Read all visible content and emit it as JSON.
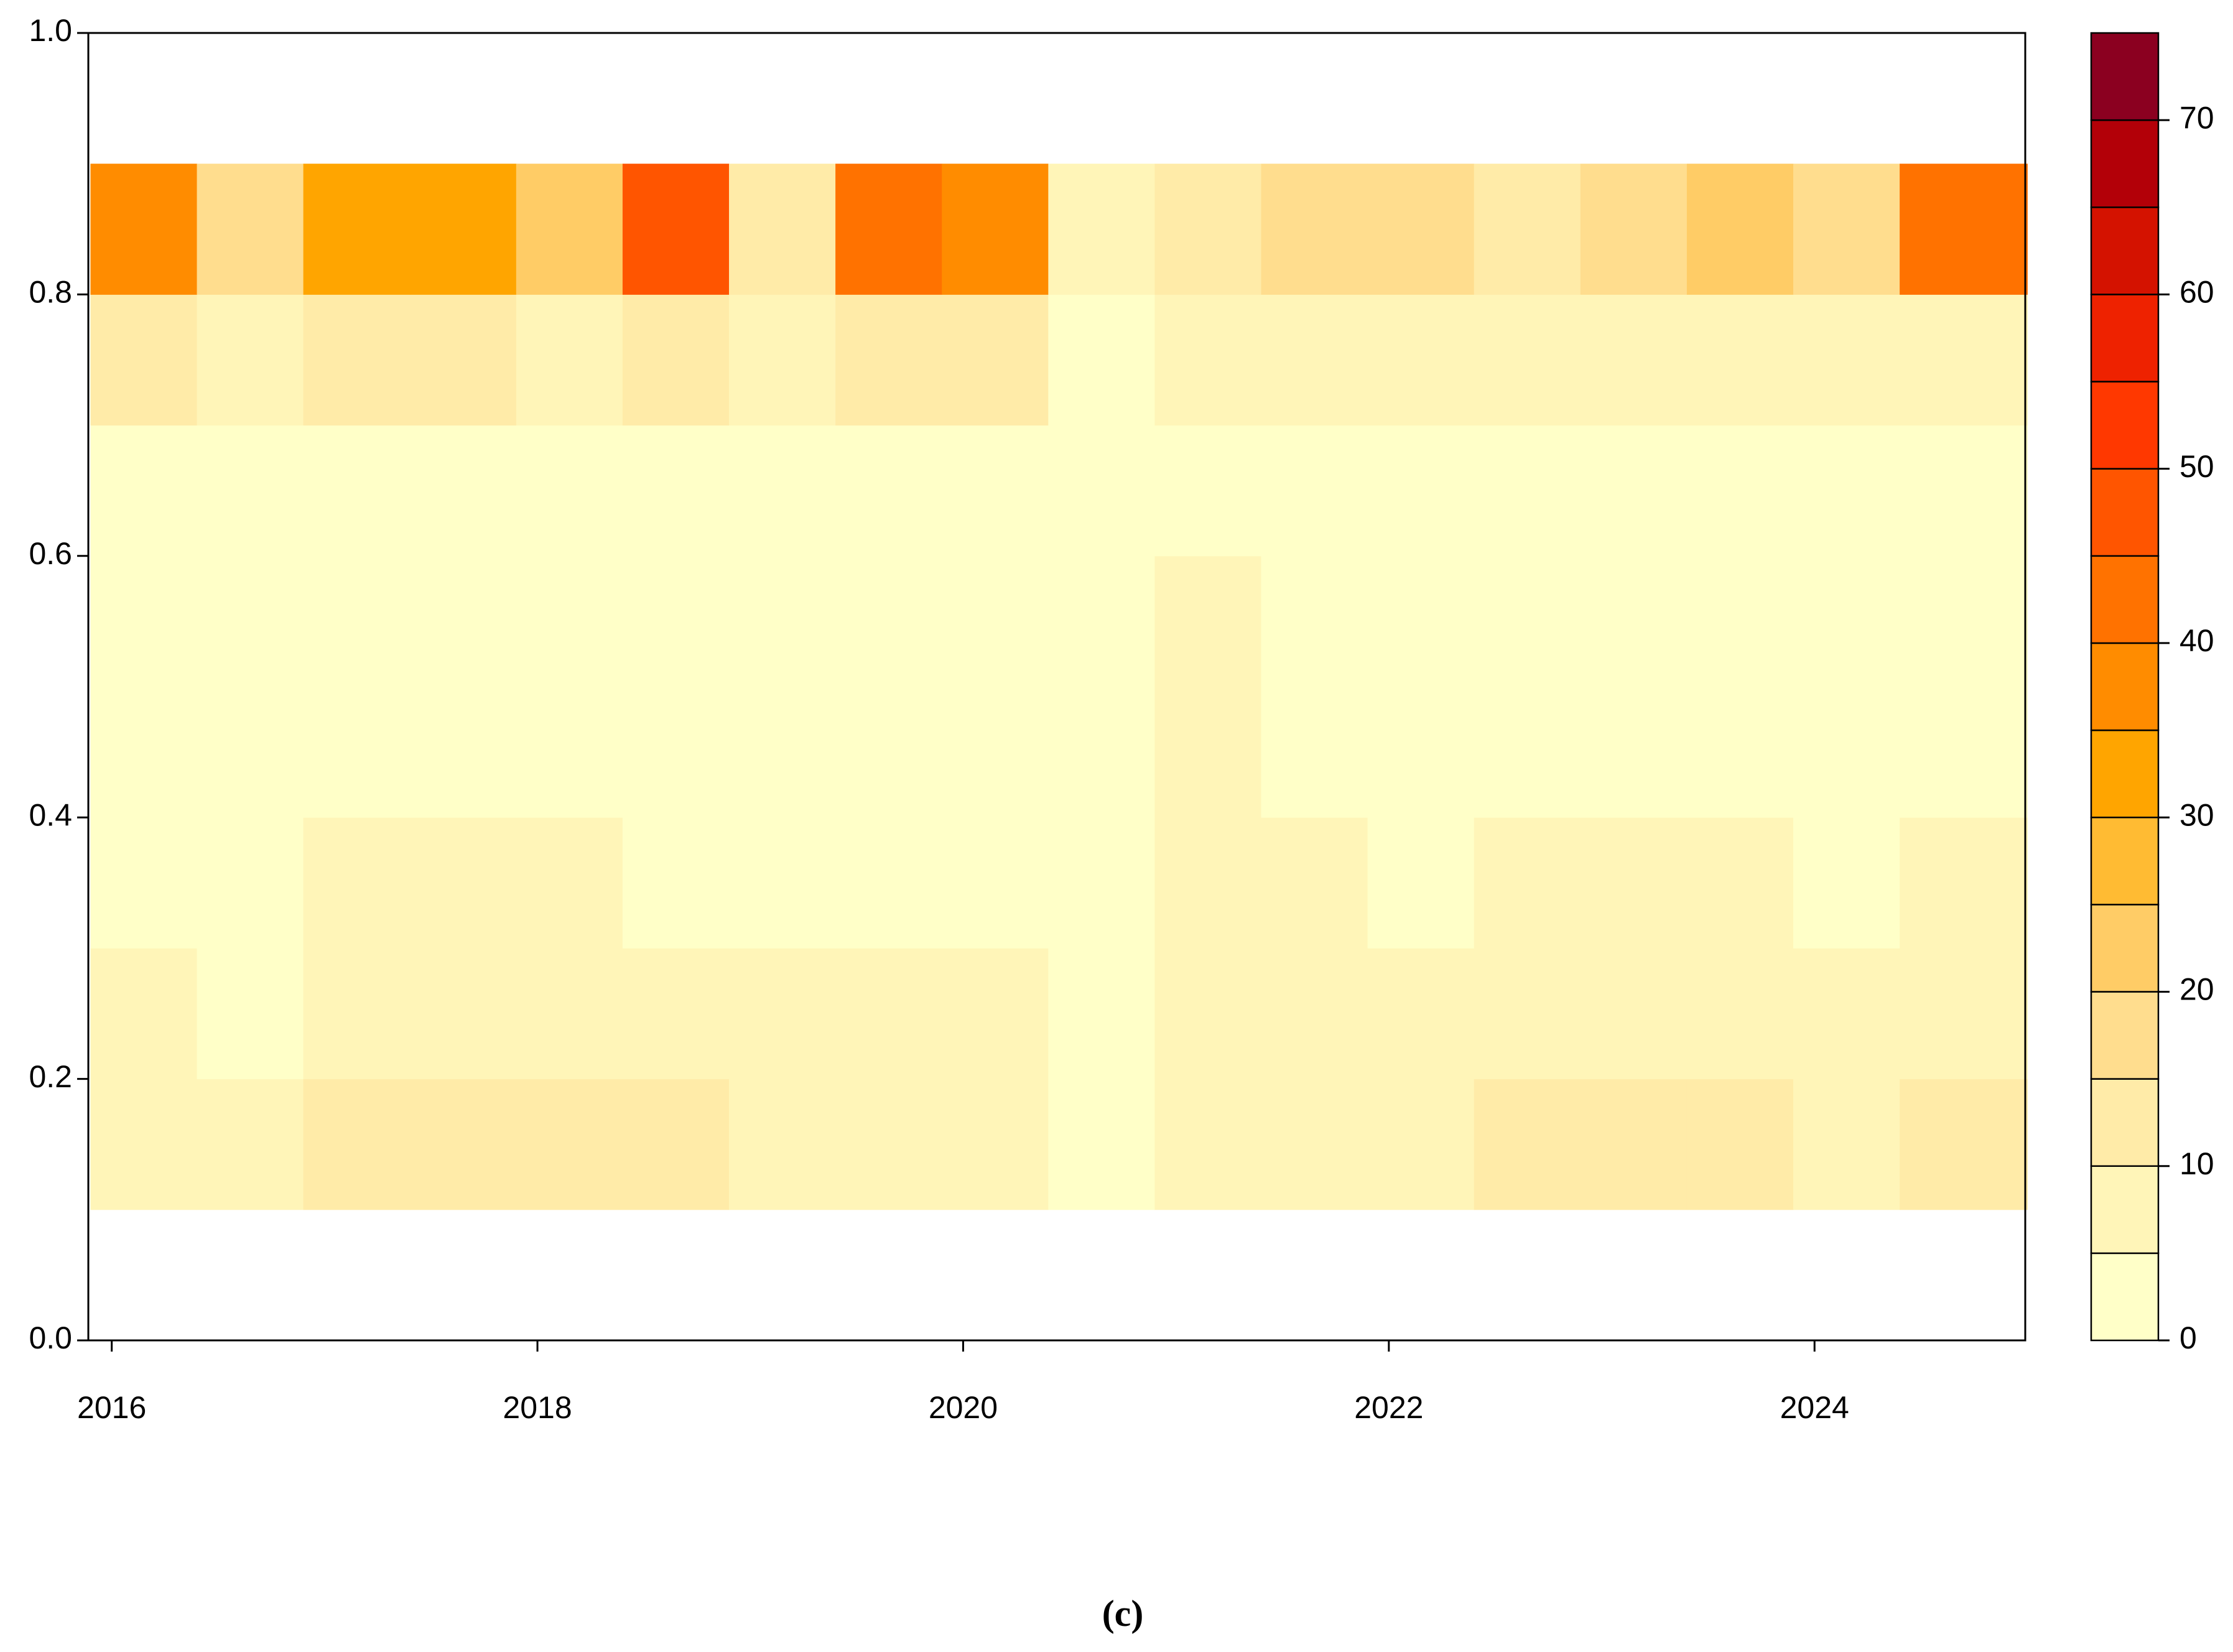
{
  "chart_data": {
    "type": "heatmap",
    "caption": "(c)",
    "x_bins": [
      2015.9,
      2016.4,
      2016.9,
      2017.4,
      2017.9,
      2018.4,
      2018.9,
      2019.4,
      2019.9,
      2020.4,
      2020.9,
      2021.4,
      2021.9,
      2022.4,
      2022.9,
      2023.4,
      2023.9,
      2024.4,
      2025.0
    ],
    "y_bins": [
      0.1,
      0.2,
      0.3,
      0.4,
      0.5,
      0.6,
      0.7,
      0.8,
      0.9
    ],
    "z": [
      [
        7,
        7,
        12,
        15,
        12,
        12,
        10,
        9,
        9,
        3,
        9,
        9,
        7,
        12,
        14,
        11,
        8,
        12
      ],
      [
        7,
        5,
        10,
        10,
        8,
        8,
        7,
        6,
        7,
        2,
        7,
        7,
        6,
        9,
        10,
        8,
        6,
        8
      ],
      [
        4,
        4,
        8,
        8,
        6,
        5,
        5,
        5,
        5,
        2,
        6,
        6,
        5,
        6,
        7,
        6,
        5,
        6
      ],
      [
        3,
        3,
        5,
        5,
        4,
        3,
        3,
        4,
        5,
        2,
        8,
        4,
        4,
        4,
        5,
        4,
        4,
        4
      ],
      [
        3,
        3,
        4,
        4,
        4,
        3,
        3,
        4,
        5,
        2,
        10,
        3,
        3,
        3,
        3,
        3,
        3,
        3
      ],
      [
        3,
        3,
        4,
        4,
        4,
        3,
        3,
        4,
        5,
        2,
        4,
        3,
        3,
        3,
        3,
        3,
        3,
        3
      ],
      [
        12,
        7,
        12,
        12,
        8,
        14,
        7,
        13,
        12,
        4,
        6,
        7,
        7,
        7,
        8,
        8,
        7,
        10
      ],
      [
        40,
        18,
        32,
        32,
        25,
        50,
        15,
        45,
        38,
        10,
        12,
        16,
        18,
        14,
        20,
        24,
        16,
        42
      ]
    ],
    "levels": [
      0,
      5,
      10,
      15,
      20,
      25,
      30,
      35,
      40,
      45,
      50,
      55,
      60,
      65,
      70,
      75
    ],
    "colors": [
      "#FFFFC8",
      "#FFF5B8",
      "#FFEBA8",
      "#FFDD8E",
      "#FFCC66",
      "#FFBB33",
      "#FFA500",
      "#FF8C00",
      "#FF7200",
      "#FF5500",
      "#FF3800",
      "#EE2200",
      "#D41200",
      "#B30008",
      "#8B0020"
    ],
    "xlim": [
      2015.89,
      2024.99
    ],
    "ylim": [
      0,
      1
    ],
    "xticks": [
      2016,
      2018,
      2020,
      2022,
      2024
    ],
    "yticks": [
      {
        "value": 0,
        "label": "0.0"
      },
      0.2,
      0.4,
      0.6,
      0.8,
      {
        "value": 1,
        "label": "1.0"
      }
    ],
    "colorbar_lim": [
      0,
      75
    ],
    "colorbar_ticks": [
      0,
      10,
      20,
      30,
      40,
      50,
      60,
      70
    ]
  }
}
